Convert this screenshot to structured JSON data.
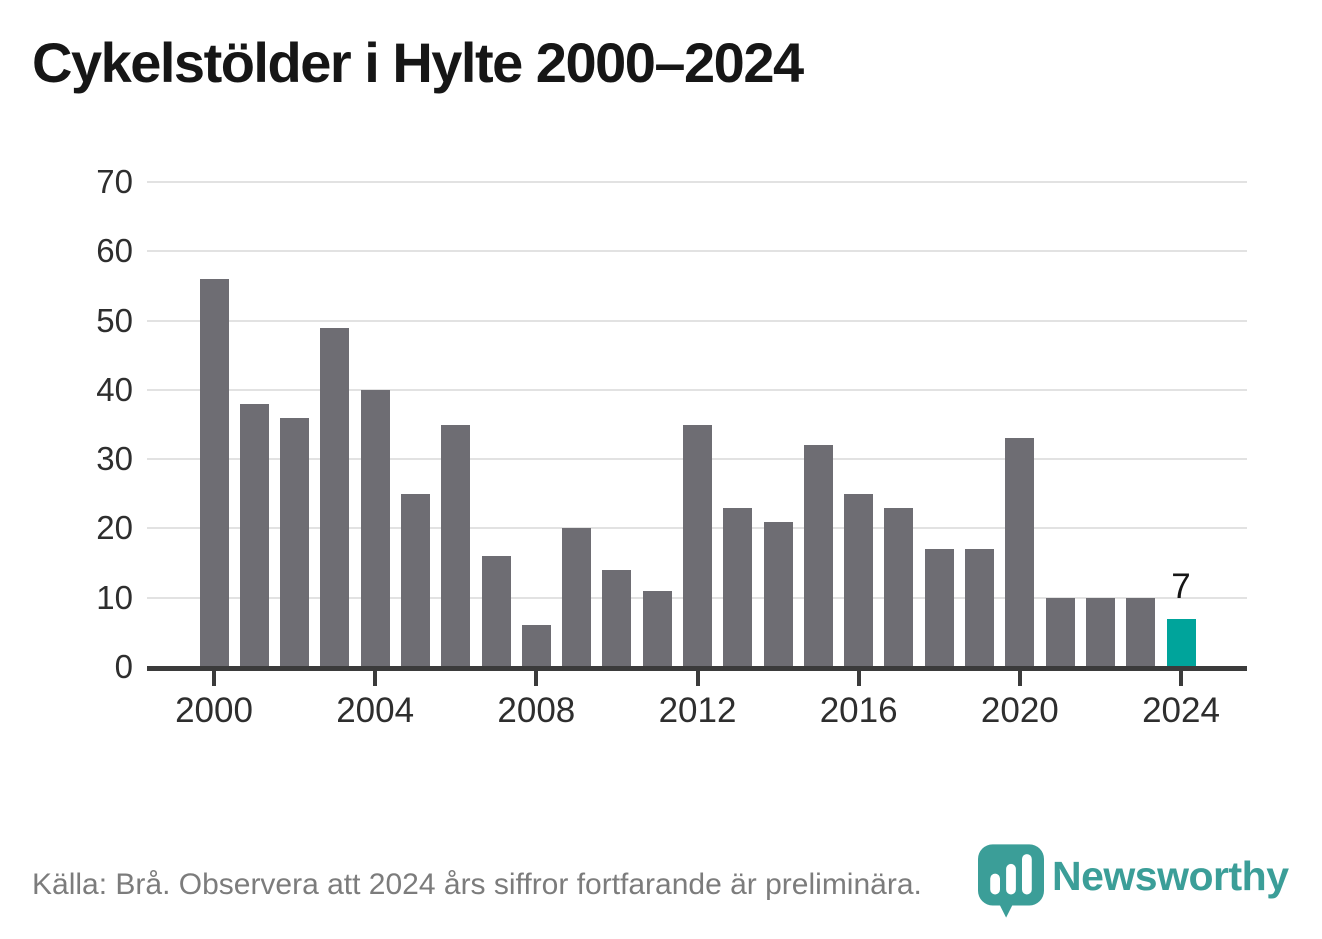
{
  "title": "Cykelstölder i Hylte 2000–2024",
  "footer": {
    "source_note": "Källa: Brå. Observera att 2024 års siffror fortfarande är preliminära.",
    "brand_name": "Newsworthy"
  },
  "colors": {
    "bar": "#6e6d73",
    "highlight": "#00a49b",
    "brand_teal": "#3b9e98",
    "gridline": "#e2e2e2",
    "axis_line": "#3b3b3b",
    "tick_label": "#2e2e2e",
    "title_text": "#161616",
    "footer_text": "#7c7c7c"
  },
  "icons": {
    "brand_icon": "newsworthy-pin-with-bar-chart"
  },
  "chart_data": {
    "type": "bar",
    "title": "Cykelstölder i Hylte 2000–2024",
    "categories": [
      2000,
      2001,
      2002,
      2003,
      2004,
      2005,
      2006,
      2007,
      2008,
      2009,
      2010,
      2011,
      2012,
      2013,
      2014,
      2015,
      2016,
      2017,
      2018,
      2019,
      2020,
      2021,
      2022,
      2023,
      2024
    ],
    "values": [
      56,
      38,
      36,
      49,
      40,
      25,
      35,
      16,
      6,
      20,
      14,
      11,
      35,
      23,
      21,
      32,
      25,
      23,
      17,
      17,
      33,
      10,
      10,
      10,
      7
    ],
    "xlabel": "",
    "ylabel": "",
    "ylim": [
      0,
      70
    ],
    "yticks": [
      0,
      10,
      20,
      30,
      40,
      50,
      60,
      70
    ],
    "xticks": [
      2000,
      2004,
      2008,
      2012,
      2016,
      2020,
      2024
    ],
    "grid": true,
    "legend_position": "none",
    "highlight": {
      "year": 2024,
      "value_label": "7"
    }
  }
}
